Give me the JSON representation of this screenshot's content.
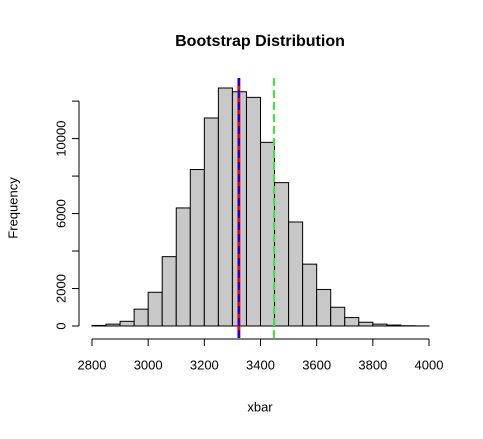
{
  "chart_data": {
    "type": "histogram",
    "title": "Bootstrap Distribution",
    "xlabel": "xbar",
    "ylabel": "Frequency",
    "bins": [
      2800,
      2850,
      2900,
      2950,
      3000,
      3050,
      3100,
      3150,
      3200,
      3250,
      3300,
      3350,
      3400,
      3450,
      3500,
      3550,
      3600,
      3650,
      3700,
      3750,
      3800,
      3850,
      3900,
      3950,
      4000
    ],
    "counts": [
      30,
      100,
      250,
      900,
      1800,
      3700,
      6300,
      8350,
      11100,
      12700,
      12500,
      12200,
      9800,
      7650,
      5550,
      3300,
      1950,
      1000,
      450,
      200,
      100,
      50,
      15,
      5
    ],
    "color": "#c8c8c8",
    "xlim": [
      2800,
      4000
    ],
    "xticks": [
      2800,
      3000,
      3200,
      3400,
      3600,
      3800,
      4000
    ],
    "ylim": [
      0,
      12700
    ],
    "yticks": [
      0,
      2000,
      6000,
      10000
    ],
    "yticks_unlabeled": [
      4000,
      8000,
      12000
    ],
    "vlines": [
      {
        "value": 3323,
        "color": "#ff0000",
        "dashed": false
      },
      {
        "value": 3323,
        "color": "#0000ff",
        "dashed": true
      },
      {
        "value": 3448,
        "color": "#33ee33",
        "dashed": true
      }
    ]
  }
}
